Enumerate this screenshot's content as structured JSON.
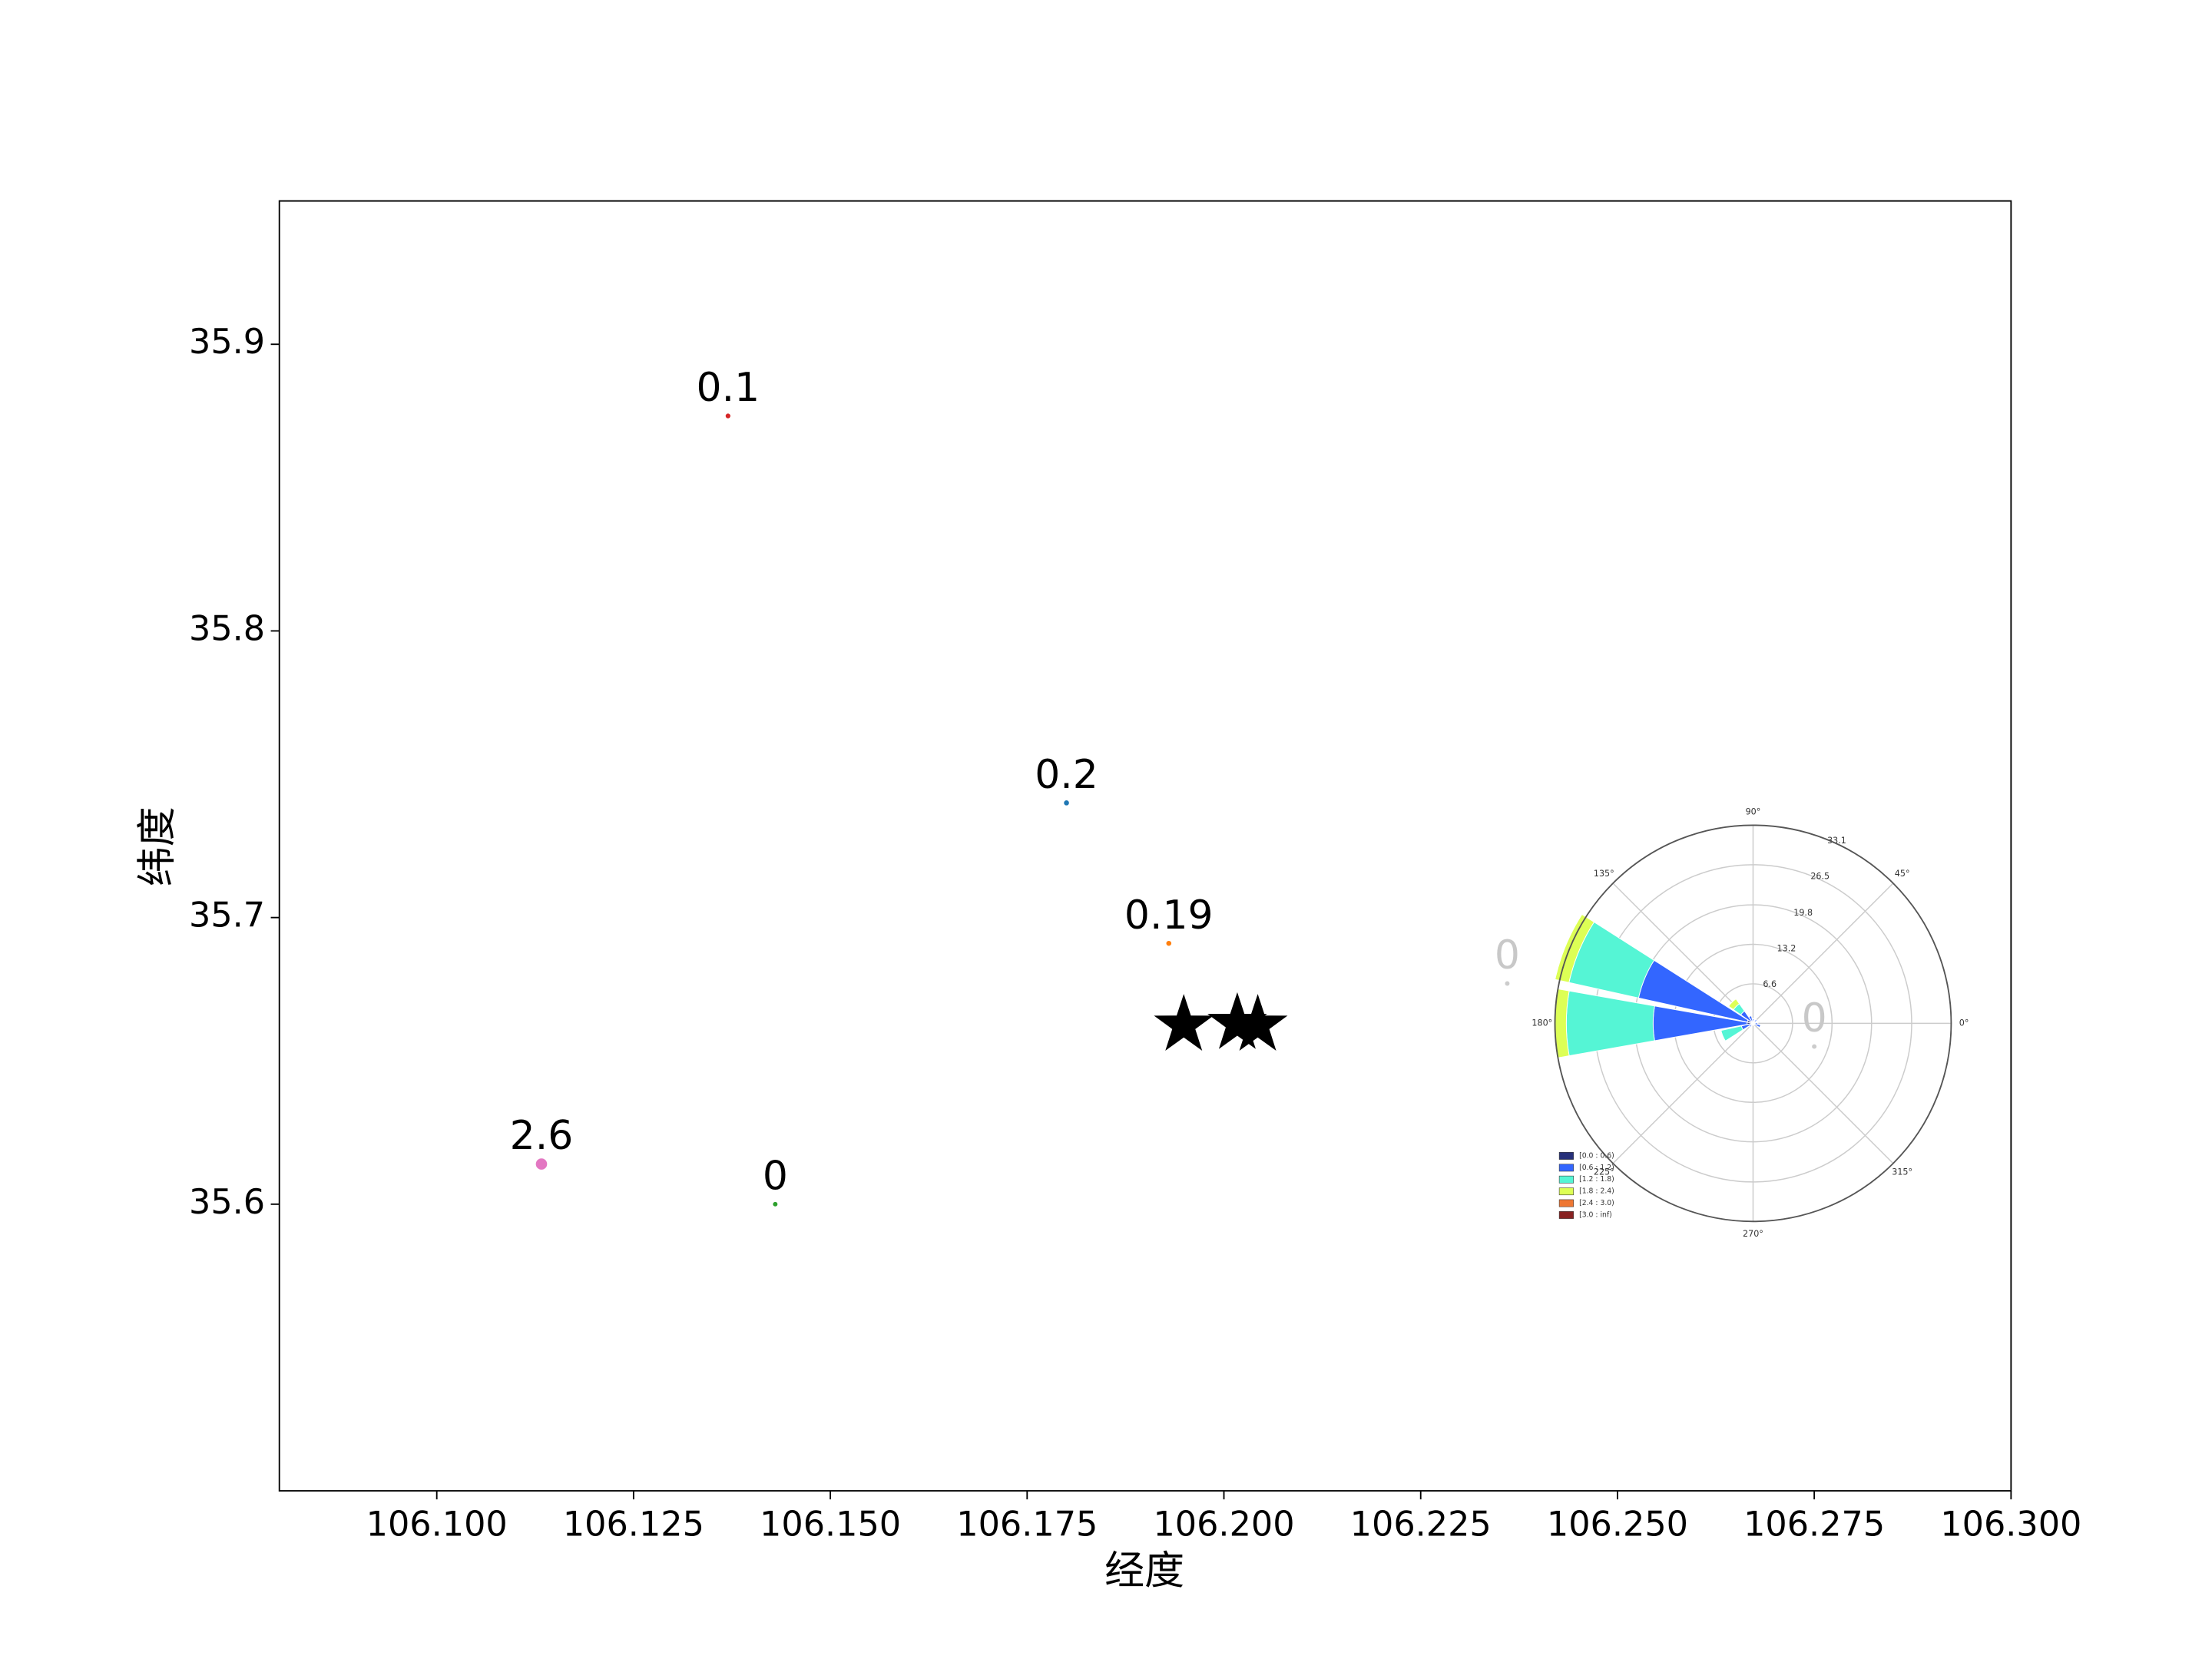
{
  "chart_data": [
    {
      "type": "scatter",
      "xlabel": "经度",
      "ylabel": "纬度",
      "xlim": [
        106.08,
        106.3
      ],
      "ylim": [
        35.5,
        35.95
      ],
      "xticks": [
        {
          "value": 106.1,
          "label": "106.100"
        },
        {
          "value": 106.125,
          "label": "106.125"
        },
        {
          "value": 106.15,
          "label": "106.150"
        },
        {
          "value": 106.175,
          "label": "106.175"
        },
        {
          "value": 106.2,
          "label": "106.200"
        },
        {
          "value": 106.225,
          "label": "106.225"
        },
        {
          "value": 106.25,
          "label": "106.250"
        },
        {
          "value": 106.275,
          "label": "106.275"
        },
        {
          "value": 106.3,
          "label": "106.300"
        }
      ],
      "yticks": [
        35.6,
        35.7,
        35.8,
        35.9
      ],
      "series": [
        {
          "x": [
            106.137,
            106.18,
            106.193,
            106.1133,
            106.143,
            106.236,
            106.275
          ],
          "y": [
            35.875,
            35.74,
            35.691,
            35.614,
            35.6,
            35.677,
            35.655
          ],
          "values": [
            0.1,
            0.2,
            0.19,
            2.6,
            0,
            0,
            0
          ],
          "colors": [
            "#d62728",
            "#1f77b4",
            "#ff7f0e",
            "#e377c2",
            "#2ca02c",
            "#cccccc",
            "#cccccc"
          ]
        },
        {
          "x": [
            106.1949,
            106.2017,
            106.2043
          ],
          "y": [
            35.6624,
            35.663,
            35.6624
          ],
          "color": "#000000"
        }
      ]
    },
    {
      "type": "windrose",
      "theta": [
        0,
        22.5,
        45,
        67.5,
        90,
        112.5,
        135,
        157.5,
        180,
        202.5,
        225,
        247.5,
        270,
        292.5,
        315,
        337.5
      ],
      "rlim": [
        0,
        33.1
      ],
      "rticks": [
        6.6,
        13.2,
        19.8,
        26.5,
        33.1
      ],
      "thetaticks": [
        {
          "value": 0,
          "label": "0°"
        },
        {
          "value": 45,
          "label": "45°"
        },
        {
          "value": 90,
          "label": "90°"
        },
        {
          "value": 135,
          "label": "135°"
        },
        {
          "value": 180,
          "label": "180°"
        },
        {
          "value": 225,
          "label": "225°"
        },
        {
          "value": 270,
          "label": "270°"
        },
        {
          "value": 315,
          "label": "315°"
        }
      ],
      "series": [
        {
          "name": "[0.0 : 0.6)",
          "color": "#27307a",
          "values": [
            0.3,
            0.3,
            0.3,
            0.3,
            0.3,
            0.3,
            0.5,
            1,
            1,
            0.5,
            0.3,
            0.3,
            0.3,
            0.3,
            0.3,
            0.3
          ]
        },
        {
          "name": "[0.6 : 1.2)",
          "color": "#3366ff",
          "values": [
            0.5,
            0,
            0.5,
            0,
            0.5,
            1,
            2,
            18.6,
            15.7,
            1.5,
            0.5,
            0,
            0,
            0,
            0,
            1
          ]
        },
        {
          "name": "[1.2 : 1.8)",
          "color": "#55f5d5",
          "values": [
            0,
            0,
            0,
            0,
            0,
            0,
            1.5,
            11.9,
            14.5,
            3.5,
            0,
            0,
            0,
            0,
            0,
            0
          ]
        },
        {
          "name": "[1.8 : 2.4)",
          "color": "#ddff55",
          "values": [
            0,
            0,
            0,
            0,
            0,
            0,
            1,
            2.4,
            2.1,
            0,
            0,
            0,
            0,
            0,
            0,
            0
          ]
        },
        {
          "name": "[2.4 : 3.0)",
          "color": "#ee7733",
          "values": [
            0,
            0,
            0,
            0,
            0,
            0,
            0,
            0,
            0,
            0,
            0,
            0,
            0,
            0,
            0,
            0
          ]
        },
        {
          "name": "[3.0 : inf)",
          "color": "#882222",
          "values": [
            0,
            0,
            0,
            0,
            0,
            0,
            0,
            0,
            0,
            0,
            0,
            0,
            0,
            0,
            0,
            0
          ]
        }
      ]
    }
  ]
}
